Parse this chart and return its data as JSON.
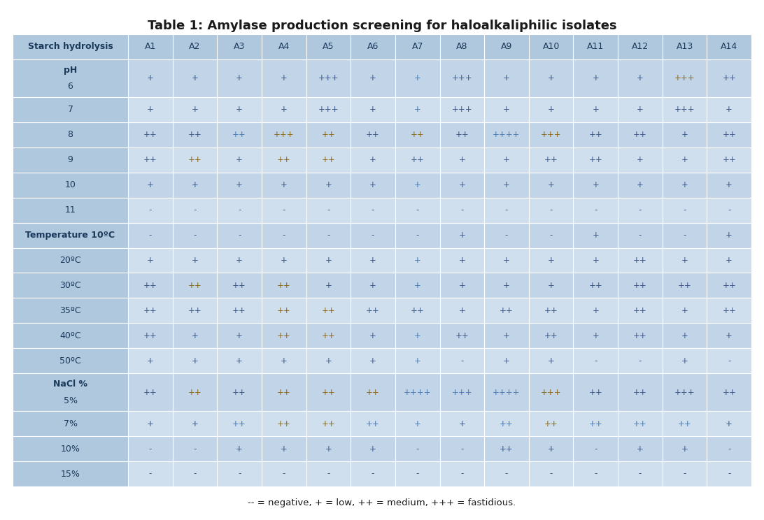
{
  "title": "Table 1: Amylase production screening for haloalkaliphilic isolates",
  "footer": "-- = negative, + = low, ++ = medium, +++ = fastidious.",
  "col_headers": [
    "Starch hydrolysis",
    "A1",
    "A2",
    "A3",
    "A4",
    "A5",
    "A6",
    "A7",
    "A8",
    "A9",
    "A10",
    "A11",
    "A12",
    "A13",
    "A14"
  ],
  "rows": [
    {
      "label": "pH\n6",
      "label2": "6",
      "double": true,
      "data": [
        "",
        "",
        "",
        "",
        "",
        "",
        "",
        "",
        "",
        "",
        "",
        "",
        "",
        ""
      ],
      "data_ph": [
        "+",
        "+",
        "+",
        "+",
        "+++",
        "+",
        "+",
        "+++",
        "+",
        "+",
        "+",
        "+",
        "+++",
        "++"
      ]
    },
    {
      "label": "7",
      "double": false,
      "data": [
        "+",
        "+",
        "+",
        "+",
        "+++",
        "+",
        "+",
        "+++",
        "+",
        "+",
        "+",
        "+",
        "+++",
        "+"
      ]
    },
    {
      "label": "8",
      "double": false,
      "data": [
        "++",
        "++",
        "++",
        "+++",
        "++",
        "++",
        "++",
        "++",
        "++++",
        "+++",
        "++",
        "++",
        "+",
        "++"
      ]
    },
    {
      "label": "9",
      "double": false,
      "data": [
        "++",
        "++",
        "+",
        "++",
        "++",
        "+",
        "++",
        "+",
        "+",
        "++",
        "++",
        "+",
        "+",
        "++"
      ]
    },
    {
      "label": "10",
      "double": false,
      "data": [
        "+",
        "+",
        "+",
        "+",
        "+",
        "+",
        "+",
        "+",
        "+",
        "+",
        "+",
        "+",
        "+",
        "+"
      ]
    },
    {
      "label": "11",
      "double": false,
      "data": [
        "-",
        "-",
        "-",
        "-",
        "-",
        "-",
        "-",
        "-",
        "-",
        "-",
        "-",
        "-",
        "-",
        "-"
      ]
    },
    {
      "label": "Temperature 10ºC",
      "double": false,
      "data": [
        "-",
        "-",
        "-",
        "-",
        "-",
        "-",
        "-",
        "+",
        "-",
        "-",
        "+",
        "-",
        "-",
        "+"
      ]
    },
    {
      "label": "20ºC",
      "double": false,
      "data": [
        "+",
        "+",
        "+",
        "+",
        "+",
        "+",
        "+",
        "+",
        "+",
        "+",
        "+",
        "++",
        "+",
        "+"
      ]
    },
    {
      "label": "30ºC",
      "double": false,
      "data": [
        "++",
        "++",
        "++",
        "++",
        "+",
        "+",
        "+",
        "+",
        "+",
        "+",
        "++",
        "++",
        "++",
        "++"
      ]
    },
    {
      "label": "35ºC",
      "double": false,
      "data": [
        "++",
        "++",
        "++",
        "++",
        "++",
        "++",
        "++",
        "+",
        "++",
        "++",
        "+",
        "++",
        "+",
        "++"
      ]
    },
    {
      "label": "40ºC",
      "double": false,
      "data": [
        "++",
        "+",
        "+",
        "++",
        "++",
        "+",
        "+",
        "++",
        "+",
        "++",
        "+",
        "++",
        "+",
        "+"
      ]
    },
    {
      "label": "50ºC",
      "double": false,
      "data": [
        "+",
        "+",
        "+",
        "+",
        "+",
        "+",
        "+",
        "-",
        "+",
        "+",
        "-",
        "-",
        "+",
        "-"
      ]
    },
    {
      "label": "NaCl %\n5%",
      "label2": "5%",
      "double": true,
      "data": [],
      "data_nacl": [
        "++",
        "++",
        "++",
        "++",
        "++",
        "++",
        "++++",
        "+++",
        "++++",
        "+++",
        "++",
        "++",
        "+++",
        "++"
      ]
    },
    {
      "label": "7%",
      "double": false,
      "data": [
        "+",
        "+",
        "++",
        "++",
        "++",
        "++",
        "+",
        "+",
        "++",
        "++",
        "++",
        "++",
        "++",
        "+"
      ]
    },
    {
      "label": "10%",
      "double": false,
      "data": [
        "-",
        "-",
        "+",
        "+",
        "+",
        "+",
        "-",
        "-",
        "++",
        "+",
        "-",
        "+",
        "+",
        "-"
      ]
    },
    {
      "label": "15%",
      "double": false,
      "data": [
        "-",
        "-",
        "-",
        "-",
        "-",
        "-",
        "-",
        "-",
        "-",
        "-",
        "-",
        "-",
        "-",
        "-"
      ]
    }
  ],
  "text_colors_by_row": [
    [
      "#3d5a8a",
      "#3d5a8a",
      "#3d5a8a",
      "#3d5a8a",
      "#3d5a8a",
      "#3d5a8a",
      "#4a7ab5",
      "#3d5a8a",
      "#3d5a8a",
      "#3d5a8a",
      "#3d5a8a",
      "#3d5a8a",
      "#8b6a1a",
      "#3d5a8a"
    ],
    [
      "#3d5a8a",
      "#3d5a8a",
      "#3d5a8a",
      "#3d5a8a",
      "#3d5a8a",
      "#3d5a8a",
      "#4a7ab5",
      "#3d5a8a",
      "#3d5a8a",
      "#3d5a8a",
      "#3d5a8a",
      "#3d5a8a",
      "#3d5a8a",
      "#3d5a8a"
    ],
    [
      "#3d5a8a",
      "#3d5a8a",
      "#4a7ab5",
      "#8b6a1a",
      "#8b6a1a",
      "#3d5a8a",
      "#8b6a1a",
      "#3d5a8a",
      "#4a7ab5",
      "#8b6a1a",
      "#3d5a8a",
      "#3d5a8a",
      "#3d5a8a",
      "#3d5a8a"
    ],
    [
      "#3d5a8a",
      "#8b6a1a",
      "#3d5a8a",
      "#8b6a1a",
      "#8b6a1a",
      "#3d5a8a",
      "#3d5a8a",
      "#3d5a8a",
      "#3d5a8a",
      "#3d5a8a",
      "#3d5a8a",
      "#3d5a8a",
      "#3d5a8a",
      "#3d5a8a"
    ],
    [
      "#3d5a8a",
      "#3d5a8a",
      "#3d5a8a",
      "#3d5a8a",
      "#3d5a8a",
      "#3d5a8a",
      "#4a7ab5",
      "#3d5a8a",
      "#3d5a8a",
      "#3d5a8a",
      "#3d5a8a",
      "#3d5a8a",
      "#3d5a8a",
      "#3d5a8a"
    ],
    [
      "#3d5a8a",
      "#3d5a8a",
      "#3d5a8a",
      "#3d5a8a",
      "#3d5a8a",
      "#3d5a8a",
      "#3d5a8a",
      "#3d5a8a",
      "#3d5a8a",
      "#3d5a8a",
      "#3d5a8a",
      "#3d5a8a",
      "#3d5a8a",
      "#3d5a8a"
    ],
    [
      "#3d5a8a",
      "#3d5a8a",
      "#3d5a8a",
      "#3d5a8a",
      "#3d5a8a",
      "#3d5a8a",
      "#3d5a8a",
      "#3d5a8a",
      "#3d5a8a",
      "#3d5a8a",
      "#3d5a8a",
      "#3d5a8a",
      "#3d5a8a",
      "#3d5a8a"
    ],
    [
      "#3d5a8a",
      "#3d5a8a",
      "#3d5a8a",
      "#3d5a8a",
      "#3d5a8a",
      "#3d5a8a",
      "#4a7ab5",
      "#3d5a8a",
      "#3d5a8a",
      "#3d5a8a",
      "#3d5a8a",
      "#3d5a8a",
      "#3d5a8a",
      "#3d5a8a"
    ],
    [
      "#3d5a8a",
      "#8b6a1a",
      "#3d5a8a",
      "#8b6a1a",
      "#3d5a8a",
      "#3d5a8a",
      "#4a7ab5",
      "#3d5a8a",
      "#3d5a8a",
      "#3d5a8a",
      "#3d5a8a",
      "#3d5a8a",
      "#3d5a8a",
      "#3d5a8a"
    ],
    [
      "#3d5a8a",
      "#3d5a8a",
      "#3d5a8a",
      "#8b6a1a",
      "#8b6a1a",
      "#3d5a8a",
      "#3d5a8a",
      "#3d5a8a",
      "#3d5a8a",
      "#3d5a8a",
      "#3d5a8a",
      "#3d5a8a",
      "#3d5a8a",
      "#3d5a8a"
    ],
    [
      "#3d5a8a",
      "#3d5a8a",
      "#3d5a8a",
      "#8b6a1a",
      "#8b6a1a",
      "#3d5a8a",
      "#4a7ab5",
      "#3d5a8a",
      "#3d5a8a",
      "#3d5a8a",
      "#3d5a8a",
      "#3d5a8a",
      "#3d5a8a",
      "#3d5a8a"
    ],
    [
      "#3d5a8a",
      "#3d5a8a",
      "#3d5a8a",
      "#3d5a8a",
      "#3d5a8a",
      "#3d5a8a",
      "#4a7ab5",
      "#3d5a8a",
      "#3d5a8a",
      "#3d5a8a",
      "#3d5a8a",
      "#3d5a8a",
      "#3d5a8a",
      "#3d5a8a"
    ],
    [
      "#3d5a8a",
      "#8b6a1a",
      "#3d5a8a",
      "#8b6a1a",
      "#8b6a1a",
      "#8b6a1a",
      "#4a7ab5",
      "#4a7ab5",
      "#4a7ab5",
      "#8b6a1a",
      "#3d5a8a",
      "#3d5a8a",
      "#3d5a8a",
      "#3d5a8a"
    ],
    [
      "#3d5a8a",
      "#3d5a8a",
      "#4a7ab5",
      "#8b6a1a",
      "#8b6a1a",
      "#4a7ab5",
      "#4a7ab5",
      "#3d5a8a",
      "#4a7ab5",
      "#8b6a1a",
      "#4a7ab5",
      "#4a7ab5",
      "#4a7ab5",
      "#3d5a8a"
    ],
    [
      "#3d5a8a",
      "#3d5a8a",
      "#3d5a8a",
      "#3d5a8a",
      "#3d5a8a",
      "#3d5a8a",
      "#3d5a8a",
      "#3d5a8a",
      "#3d5a8a",
      "#3d5a8a",
      "#3d5a8a",
      "#3d5a8a",
      "#3d5a8a",
      "#3d5a8a"
    ],
    [
      "#3d5a8a",
      "#3d5a8a",
      "#3d5a8a",
      "#3d5a8a",
      "#3d5a8a",
      "#3d5a8a",
      "#3d5a8a",
      "#3d5a8a",
      "#3d5a8a",
      "#3d5a8a",
      "#3d5a8a",
      "#3d5a8a",
      "#3d5a8a",
      "#3d5a8a"
    ]
  ],
  "label_col_color": "#b0c8de",
  "header_bg": "#b0c8de",
  "row_colors_even": "#c2d5e8",
  "row_colors_odd": "#d0dfed",
  "outer_bg": "#ffffff",
  "title_color": "#1a1a1a",
  "label_text_color": "#1a3a5c",
  "data_text_default": "#3d5a8a"
}
